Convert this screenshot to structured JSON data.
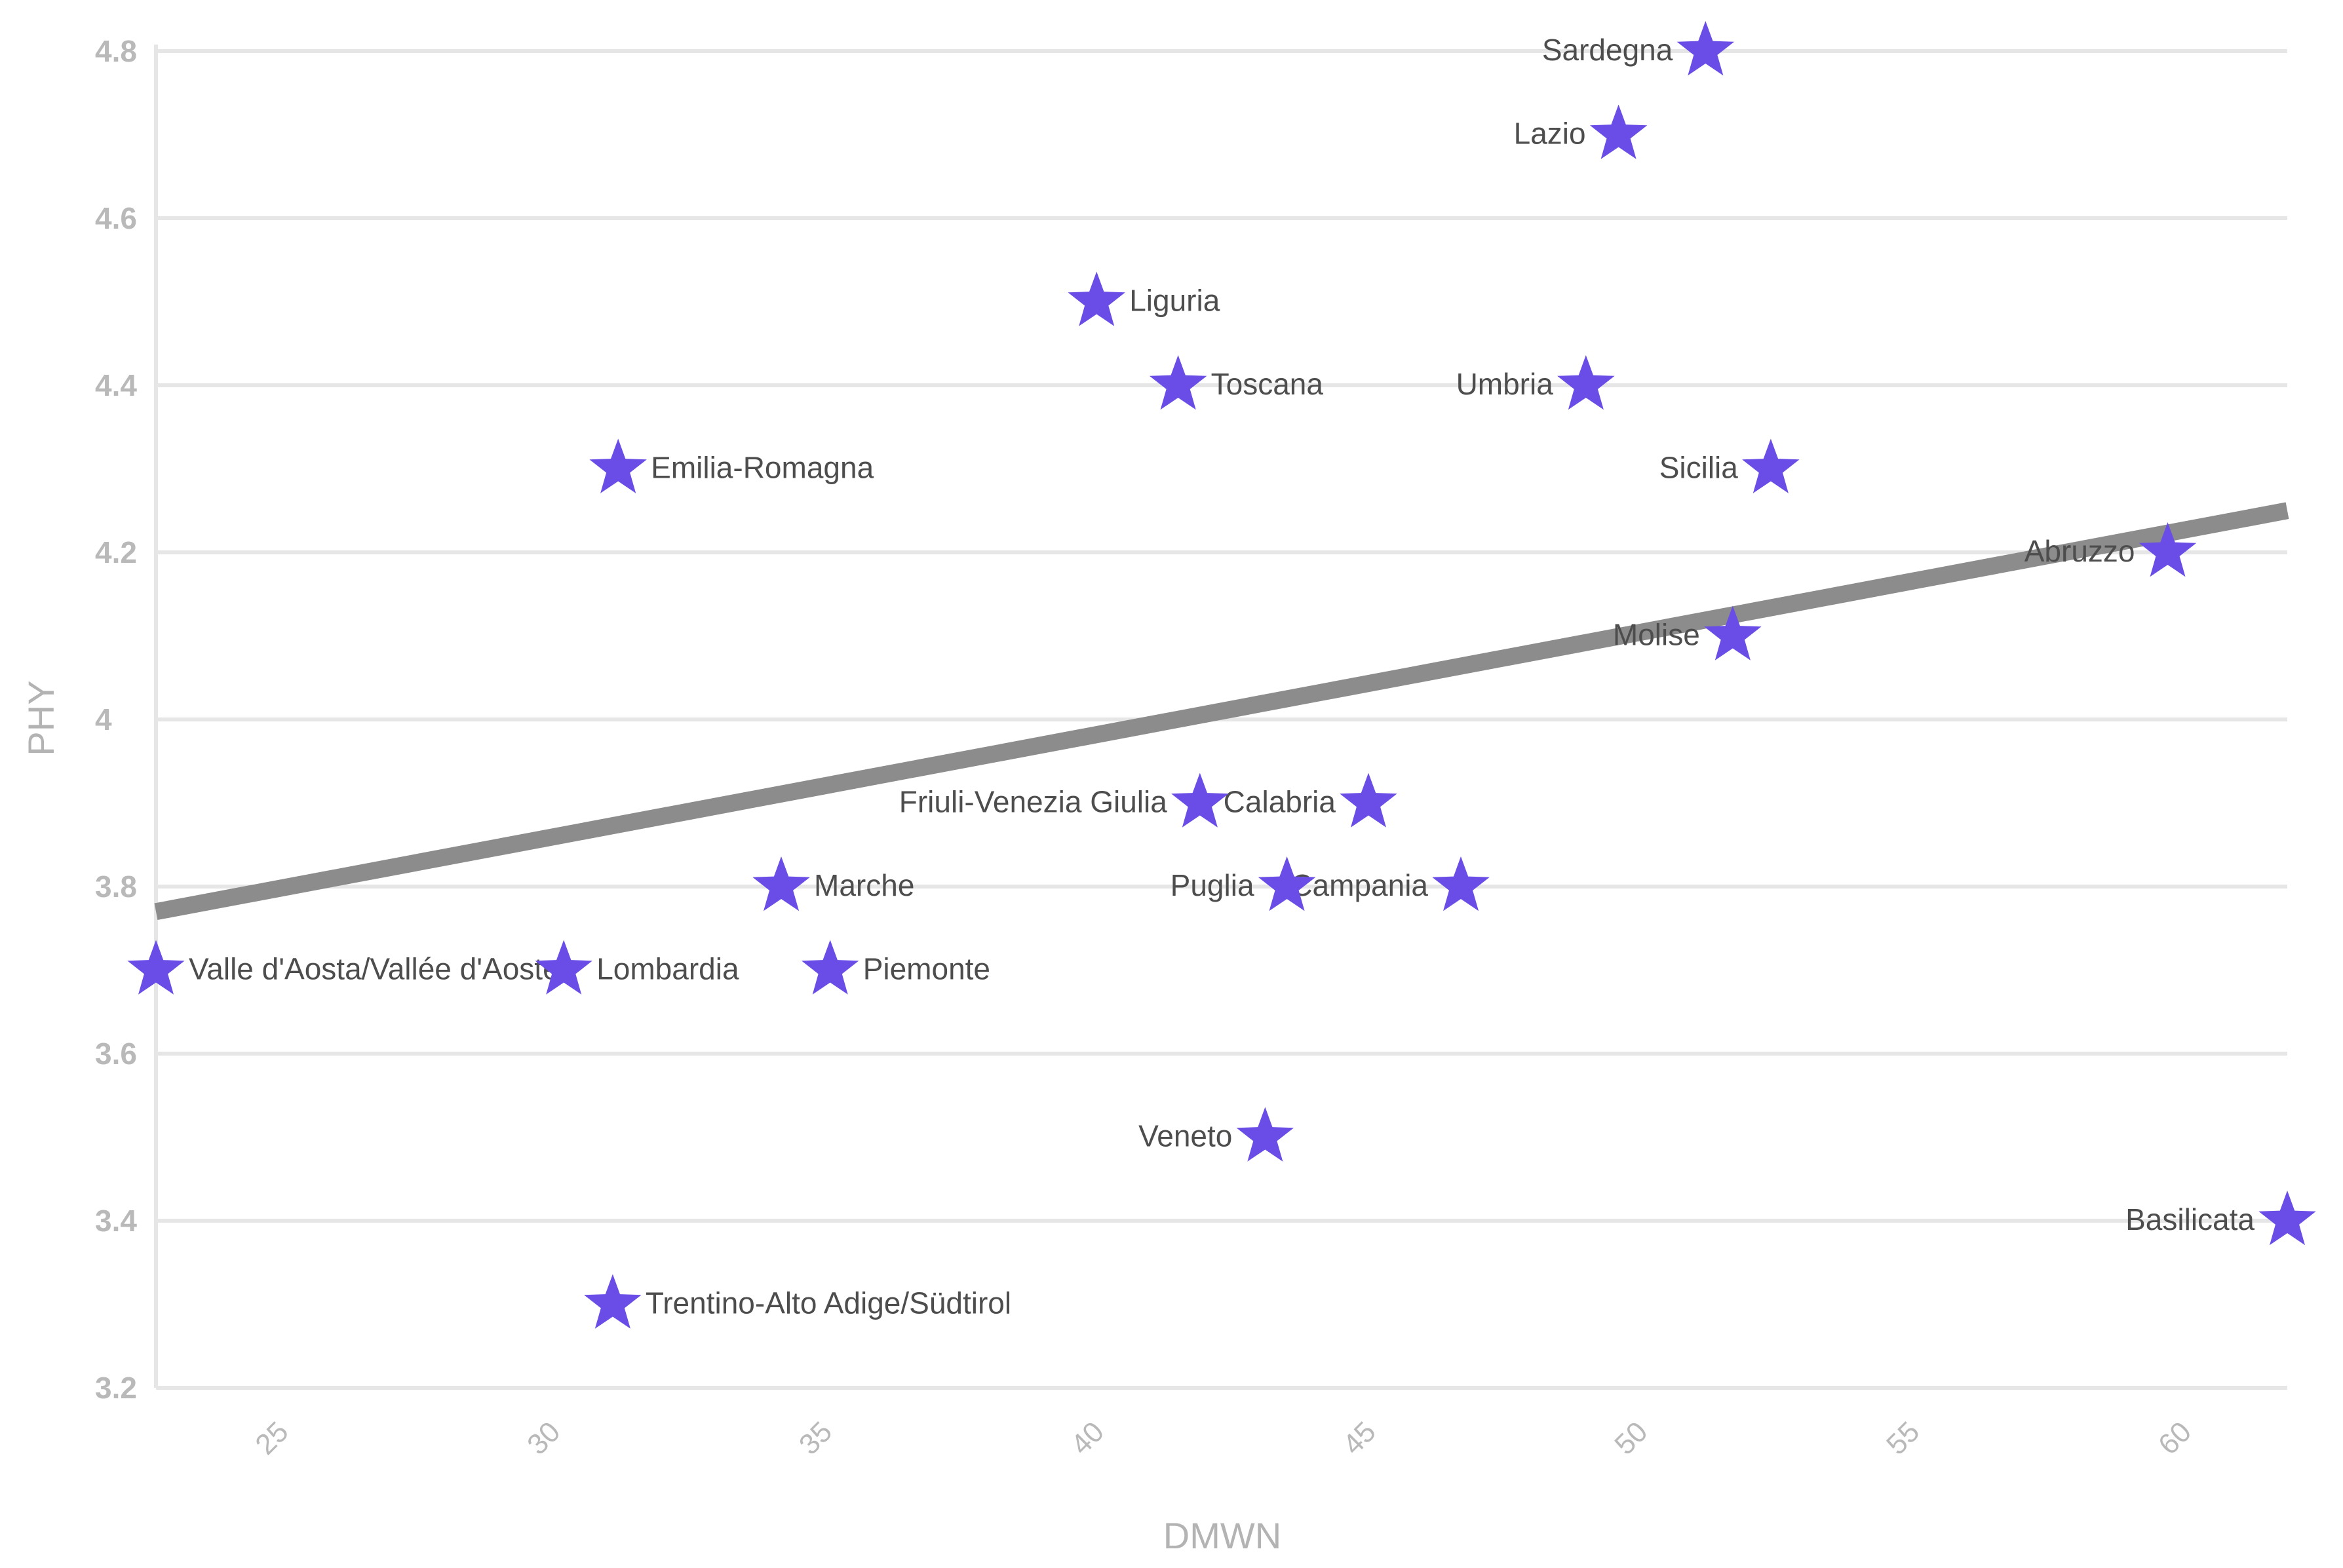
{
  "chart_data": {
    "type": "scatter",
    "xlabel": "DMWN",
    "ylabel": "PHY",
    "xlim": [
      22.8,
      62
    ],
    "ylim": [
      3.2,
      4.8
    ],
    "x_ticks": [
      25,
      30,
      35,
      40,
      45,
      50,
      55,
      60
    ],
    "y_ticks": [
      3.2,
      3.4,
      3.6,
      3.8,
      4,
      4.2,
      4.4,
      4.6,
      4.8
    ],
    "y_tick_labels": [
      "3.2",
      "3.4",
      "3.6",
      "3.8",
      "4",
      "4.2",
      "4.4",
      "4.6",
      "4.8"
    ],
    "grid": true,
    "marker": "star",
    "marker_color": "#6a4de6",
    "trend_color": "#8c8c8c",
    "trendline": {
      "x": [
        22.8,
        62
      ],
      "y": [
        3.77,
        4.25
      ]
    },
    "points": [
      {
        "label": "Sardegna",
        "x": 51.3,
        "y": 4.8,
        "anchor": "left"
      },
      {
        "label": "Lazio",
        "x": 49.7,
        "y": 4.7,
        "anchor": "left"
      },
      {
        "label": "Liguria",
        "x": 40.1,
        "y": 4.5,
        "anchor": "right"
      },
      {
        "label": "Toscana",
        "x": 41.6,
        "y": 4.4,
        "anchor": "right"
      },
      {
        "label": "Umbria",
        "x": 49.1,
        "y": 4.4,
        "anchor": "left"
      },
      {
        "label": "Emilia-Romagna",
        "x": 31.3,
        "y": 4.3,
        "anchor": "right"
      },
      {
        "label": "Sicilia",
        "x": 52.5,
        "y": 4.3,
        "anchor": "left"
      },
      {
        "label": "Abruzzo",
        "x": 59.8,
        "y": 4.2,
        "anchor": "left"
      },
      {
        "label": "Molise",
        "x": 51.8,
        "y": 4.1,
        "anchor": "left"
      },
      {
        "label": "Friuli-Venezia Giulia",
        "x": 42.0,
        "y": 3.9,
        "anchor": "left"
      },
      {
        "label": "Calabria",
        "x": 45.1,
        "y": 3.9,
        "anchor": "left"
      },
      {
        "label": "Marche",
        "x": 34.3,
        "y": 3.8,
        "anchor": "right"
      },
      {
        "label": "Puglia",
        "x": 43.6,
        "y": 3.8,
        "anchor": "left"
      },
      {
        "label": "Campania",
        "x": 46.8,
        "y": 3.8,
        "anchor": "left"
      },
      {
        "label": "Valle d'Aosta/Vallée d'Aoste",
        "x": 22.8,
        "y": 3.7,
        "anchor": "right"
      },
      {
        "label": "Lombardia",
        "x": 30.3,
        "y": 3.7,
        "anchor": "right"
      },
      {
        "label": "Piemonte",
        "x": 35.2,
        "y": 3.7,
        "anchor": "right"
      },
      {
        "label": "Veneto",
        "x": 43.2,
        "y": 3.5,
        "anchor": "left"
      },
      {
        "label": "Basilicata",
        "x": 62.0,
        "y": 3.4,
        "anchor": "left"
      },
      {
        "label": "Trentino-Alto Adige/Südtirol",
        "x": 31.2,
        "y": 3.3,
        "anchor": "right"
      }
    ]
  }
}
